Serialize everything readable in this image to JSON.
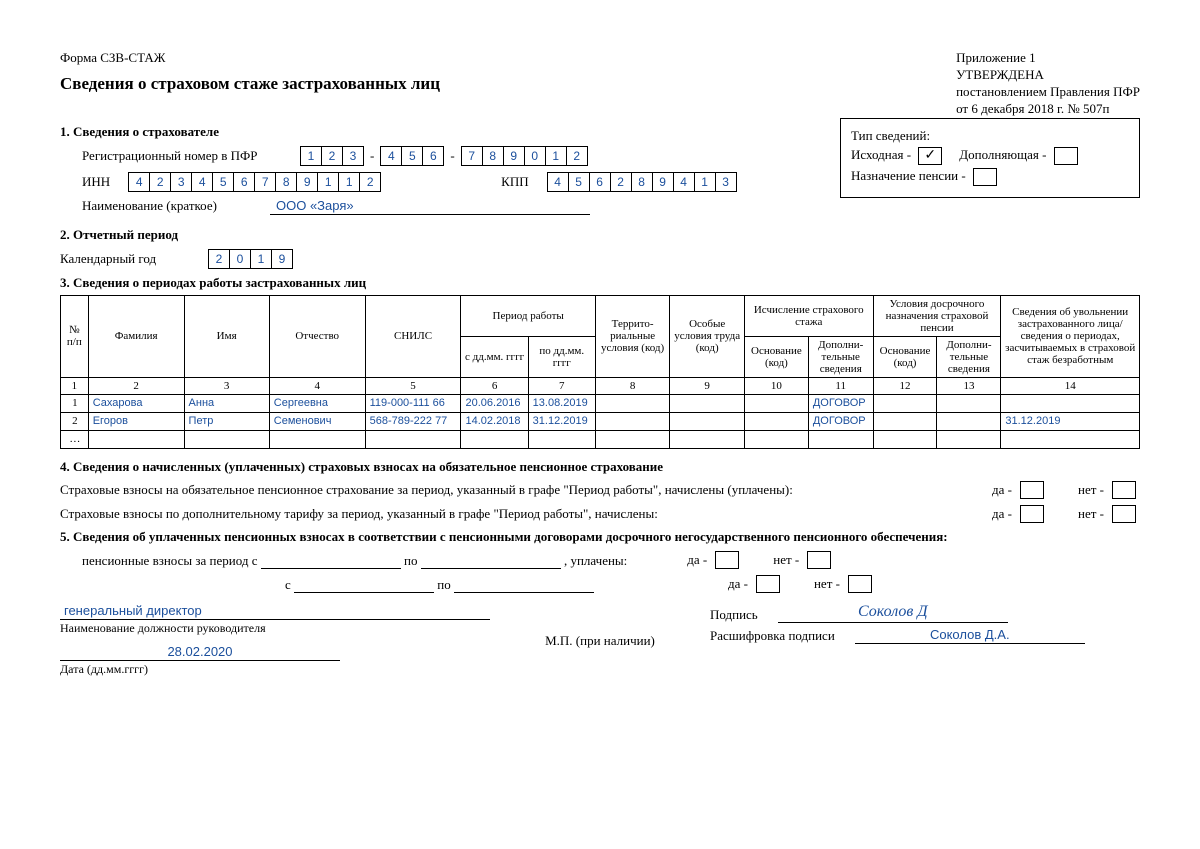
{
  "header": {
    "form_code": "Форма СЗВ-СТАЖ",
    "title": "Сведения о страховом стаже застрахованных лиц",
    "appendix": "Приложение 1",
    "approved": "УТВЕРЖДЕНА",
    "decree": "постановлением Правления ПФР",
    "decree_date": "от 6 декабря 2018 г. № 507п"
  },
  "info_box": {
    "title": "Тип сведений:",
    "initial_label": "Исходная -",
    "initial_check": "✓",
    "supplement_label": "Дополняющая -",
    "supplement_check": "",
    "pension_label": "Назначение пенсии -",
    "pension_check": ""
  },
  "s1": {
    "head": "1. Сведения о страхователе",
    "reg_label": "Регистрационный номер в ПФР",
    "reg_p1": [
      "1",
      "2",
      "3"
    ],
    "reg_p2": [
      "4",
      "5",
      "6"
    ],
    "reg_p3": [
      "7",
      "8",
      "9",
      "0",
      "1",
      "2"
    ],
    "inn_label": "ИНН",
    "inn": [
      "4",
      "2",
      "3",
      "4",
      "5",
      "6",
      "7",
      "8",
      "9",
      "1",
      "1",
      "2"
    ],
    "kpp_label": "КПП",
    "kpp": [
      "4",
      "5",
      "6",
      "2",
      "8",
      "9",
      "4",
      "1",
      "3"
    ],
    "name_label": "Наименование (краткое)",
    "name_value": "ООО «Заря»"
  },
  "s2": {
    "head": "2. Отчетный период",
    "year_label": "Календарный год",
    "year": [
      "2",
      "0",
      "1",
      "9"
    ]
  },
  "s3": {
    "head": "3. Сведения о периодах работы застрахованных лиц",
    "cols": {
      "n": "№ п/п",
      "fam": "Фамилия",
      "name": "Имя",
      "patr": "Отчество",
      "snils": "СНИЛС",
      "period": "Период работы",
      "from": "с дд.мм. гггг",
      "to": "по дд.мм. гггг",
      "terr": "Террито-риальные условия (код)",
      "special": "Особые условия труда (код)",
      "stazh": "Исчисление страхового стажа",
      "early": "Условия досрочного назначения страховой пенсии",
      "basis": "Основание (код)",
      "addl": "Дополни-тельные сведения",
      "dismiss": "Сведения об увольнении застрахованного лица/ сведения о периодах, засчитываемых в страховой стаж безработным"
    },
    "numrow": [
      "1",
      "2",
      "3",
      "4",
      "5",
      "6",
      "7",
      "8",
      "9",
      "10",
      "11",
      "12",
      "13",
      "14"
    ],
    "rows": [
      {
        "n": "1",
        "fam": "Сахарова",
        "name": "Анна",
        "patr": "Сергеевна",
        "snils": "119-000-111 66",
        "from": "20.06.2016",
        "to": "13.08.2019",
        "c8": "",
        "c9": "",
        "c10": "",
        "c11": "ДОГОВОР",
        "c12": "",
        "c13": "",
        "c14": ""
      },
      {
        "n": "2",
        "fam": "Егоров",
        "name": "Петр",
        "patr": "Семенович",
        "snils": "568-789-222 77",
        "from": "14.02.2018",
        "to": "31.12.2019",
        "c8": "",
        "c9": "",
        "c10": "",
        "c11": "ДОГОВОР",
        "c12": "",
        "c13": "",
        "c14": "31.12.2019"
      }
    ],
    "ellipsis": "…"
  },
  "s4": {
    "head": "4. Сведения о начисленных (уплаченных) страховых взносах на обязательное пенсионное страхование",
    "line1": "Страховые взносы на обязательное пенсионное страхование за период, указанный в графе \"Период работы\", начислены (уплачены):",
    "line2": "Страховые взносы по дополнительному тарифу за период, указанный в графе \"Период работы\", начислены:",
    "da": "да -",
    "net": "нет -"
  },
  "s5": {
    "head": "5. Сведения об уплаченных пенсионных взносах в соответствии с пенсионными договорами досрочного негосударственного пенсионного обеспечения:",
    "l1a": "пенсионные взносы за период с",
    "l1b": "по",
    "l1c": ", уплачены:",
    "l2a": "с",
    "l2b": "по"
  },
  "sig": {
    "position": "генеральный директор",
    "position_caption": "Наименование должности руководителя",
    "date": "28.02.2020",
    "date_caption": "Дата (дд.мм.гггг)",
    "sign_label": "Подпись",
    "signature": "Соколов Д",
    "decode_label": "Расшифровка подписи",
    "decode": "Соколов Д.А.",
    "mp": "М.П. (при наличии)"
  },
  "colors": {
    "ink": "#1b4f9c"
  }
}
